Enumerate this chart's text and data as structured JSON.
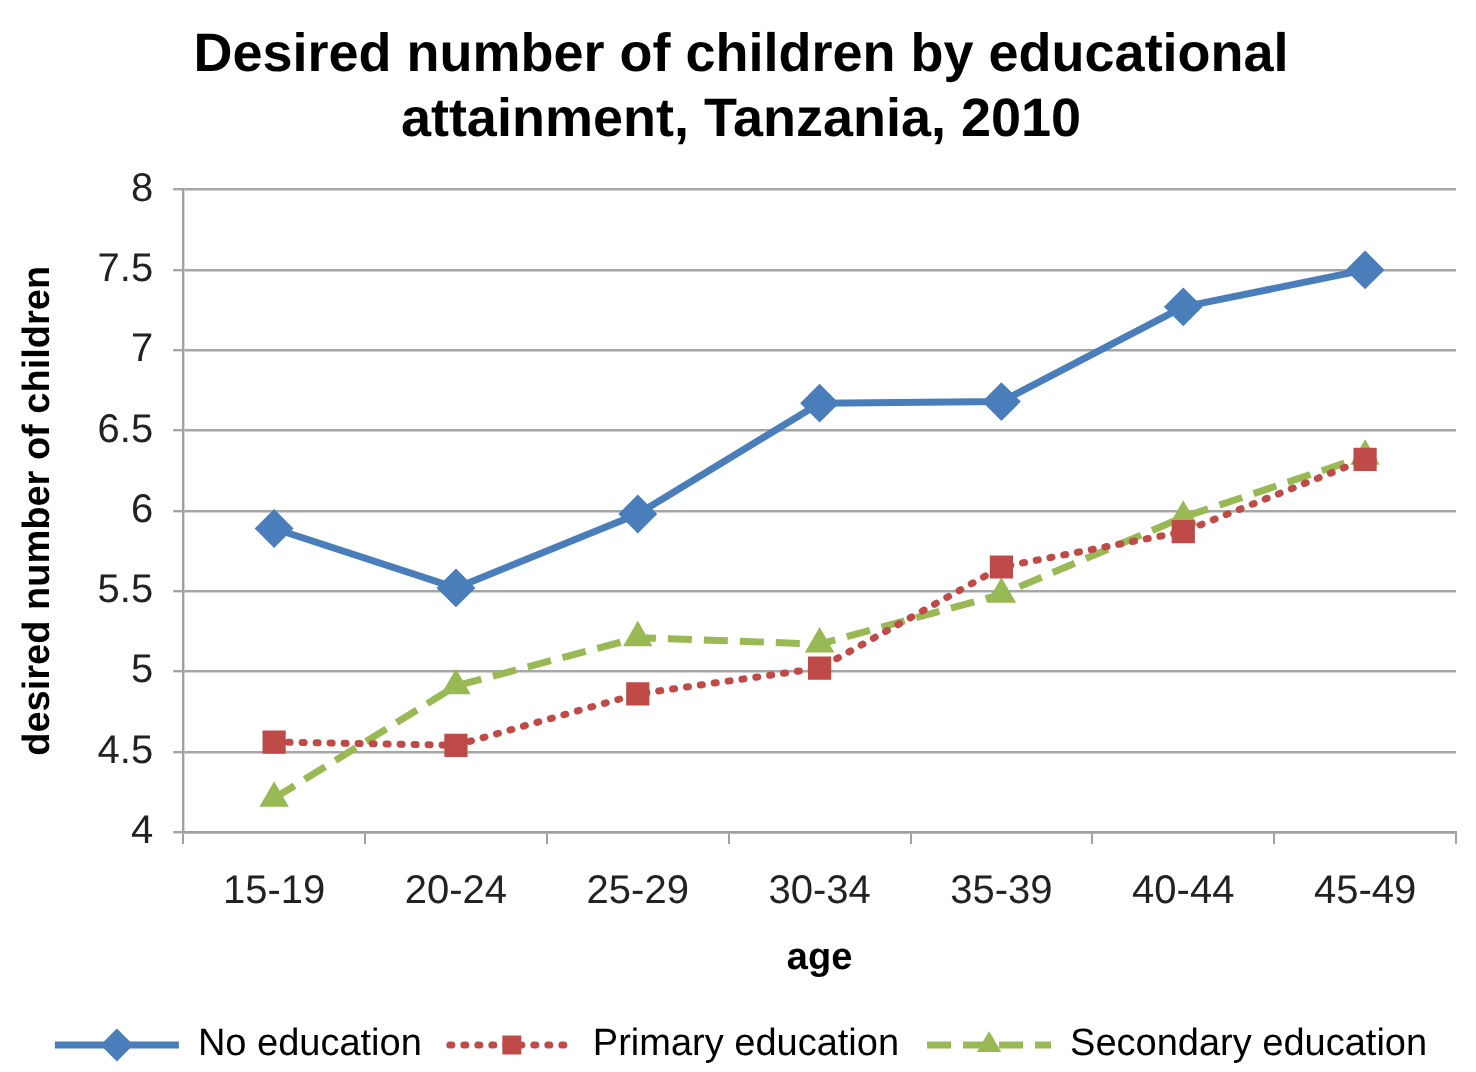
{
  "chart_data": {
    "type": "line",
    "title": "Desired number of children by educational attainment, Tanzania, 2010",
    "xlabel": "age",
    "ylabel": "desired number of children",
    "categories": [
      "15-19",
      "20-24",
      "25-29",
      "30-34",
      "35-39",
      "40-44",
      "45-49"
    ],
    "series": [
      {
        "name": "No education",
        "color": "#4a7ebb",
        "marker": "diamond",
        "line_style": "solid",
        "values": [
          5.89,
          5.52,
          5.98,
          6.67,
          6.68,
          7.27,
          7.5
        ]
      },
      {
        "name": "Primary education",
        "color": "#be4b48",
        "marker": "square",
        "line_style": "dotted",
        "values": [
          4.56,
          4.54,
          4.86,
          5.02,
          5.65,
          5.87,
          6.32
        ]
      },
      {
        "name": "Secondary education",
        "color": "#98b954",
        "marker": "triangle",
        "line_style": "dashed",
        "values": [
          4.21,
          4.91,
          5.21,
          5.17,
          5.48,
          5.96,
          6.34
        ]
      }
    ],
    "ylim": [
      4,
      8
    ],
    "yticks": [
      4,
      4.5,
      5,
      5.5,
      6,
      6.5,
      7,
      7.5,
      8
    ],
    "grid": "y",
    "legend": "bottom"
  }
}
